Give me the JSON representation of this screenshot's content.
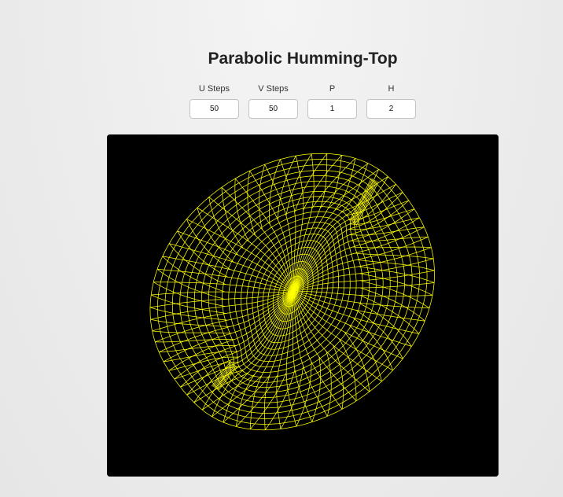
{
  "page": {
    "title": "Parabolic Humming-Top"
  },
  "controls": [
    {
      "label": "U Steps",
      "value": "50"
    },
    {
      "label": "V Steps",
      "value": "50"
    },
    {
      "label": "P",
      "value": "1"
    },
    {
      "label": "H",
      "value": "2"
    }
  ],
  "canvas": {
    "background": "#000000",
    "stroke_color": "#ffff00"
  }
}
